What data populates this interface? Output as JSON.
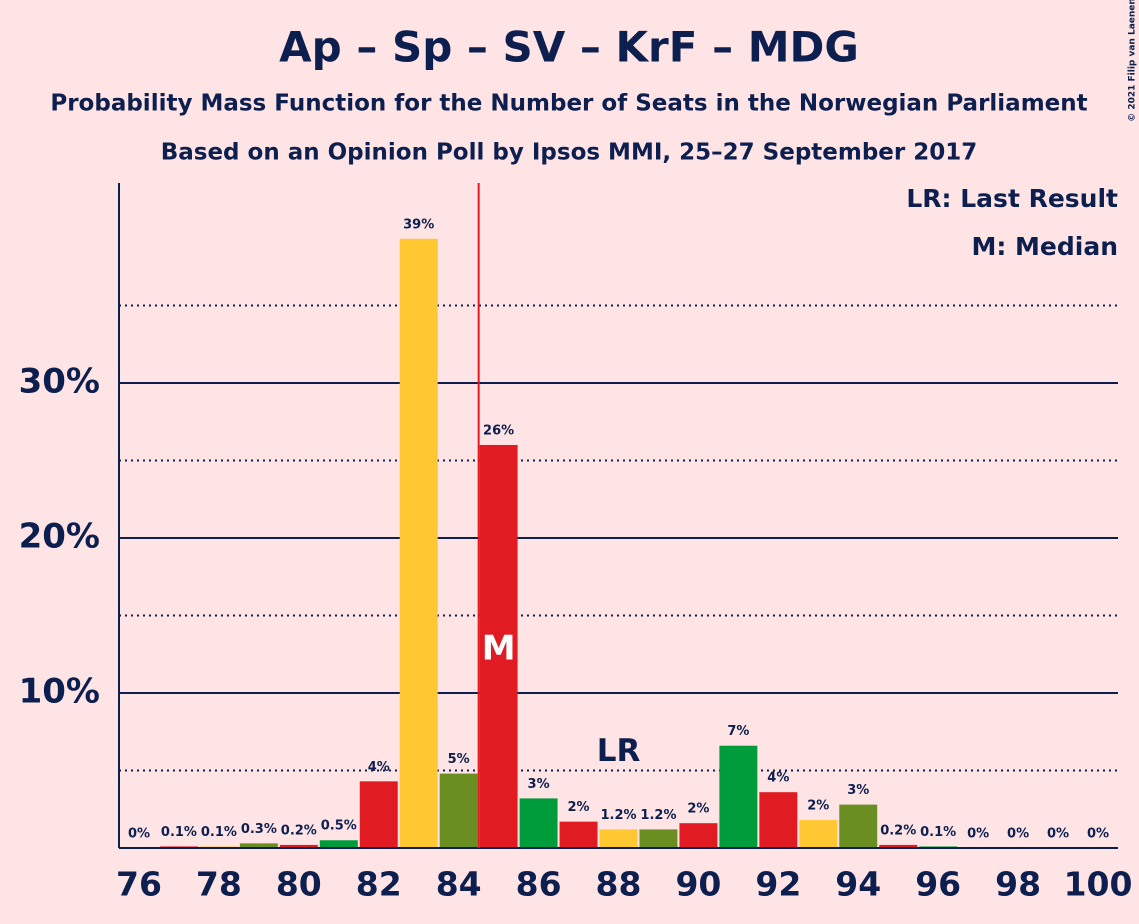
{
  "chart_data": {
    "type": "bar",
    "title": "Ap – Sp – SV – KrF – MDG",
    "subtitle": "Probability Mass Function for the Number of Seats in the Norwegian Parliament",
    "subtitle2": "Based on an Opinion Poll by Ipsos MMI, 25–27 September 2017",
    "copyright": "© 2021 Filip van Laenen",
    "x": [
      76,
      77,
      78,
      79,
      80,
      81,
      82,
      83,
      84,
      85,
      86,
      87,
      88,
      89,
      90,
      91,
      92,
      93,
      94,
      95,
      96,
      97,
      98,
      99,
      100
    ],
    "values": [
      0,
      0.1,
      0.1,
      0.3,
      0.2,
      0.5,
      4.3,
      39.3,
      4.8,
      26.0,
      3.2,
      1.7,
      1.2,
      1.2,
      1.6,
      6.6,
      3.6,
      1.8,
      2.8,
      0.2,
      0.1,
      0,
      0,
      0,
      0
    ],
    "value_labels": [
      "0%",
      "0.1%",
      "0.1%",
      "0.3%",
      "0.2%",
      "0.5%",
      "4%",
      "39%",
      "5%",
      "26%",
      "3%",
      "2%",
      "1.2%",
      "1.2%",
      "2%",
      "7%",
      "4%",
      "2%",
      "3%",
      "0.2%",
      "0.1%",
      "0%",
      "0%",
      "0%",
      "0%"
    ],
    "colors": [
      "#009b3a",
      "#e01b22",
      "#ffc832",
      "#6b8e23",
      "#e01b22",
      "#009b3a",
      "#e01b22",
      "#ffc832",
      "#6b8e23",
      "#e01b22",
      "#009b3a",
      "#e01b22",
      "#ffc832",
      "#6b8e23",
      "#e01b22",
      "#009b3a",
      "#e01b22",
      "#ffc832",
      "#6b8e23",
      "#e01b22",
      "#009b3a",
      "#e01b22",
      "#ffc832",
      "#6b8e23",
      "#e01b22"
    ],
    "xlim": [
      75.5,
      100.5
    ],
    "xticks": [
      76,
      78,
      80,
      82,
      84,
      86,
      88,
      90,
      92,
      94,
      96,
      98,
      100
    ],
    "ylim": [
      0,
      42.9
    ],
    "yticks": [
      {
        "value": 10,
        "label": "10%"
      },
      {
        "value": 20,
        "label": "20%"
      },
      {
        "value": 30,
        "label": "30%"
      }
    ],
    "minor_yticks": [
      5,
      15,
      25,
      35
    ],
    "median": 85,
    "median_label": "M",
    "last_result": 88,
    "last_result_label": "LR",
    "legend": [
      "LR: Last Result",
      "M: Median"
    ]
  }
}
